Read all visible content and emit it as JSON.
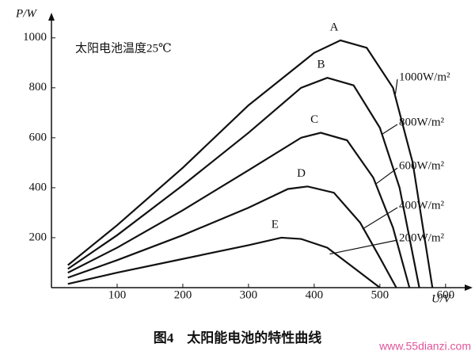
{
  "chart_data": {
    "type": "line",
    "x_label": "U/V",
    "y_label": "P/W",
    "note": "太阳电池温度25℃",
    "caption": "图4　太阳能电池的特性曲线",
    "watermark": "www.55dianzi.com",
    "xlim": [
      0,
      640
    ],
    "ylim": [
      0,
      1050
    ],
    "xticks": [
      100,
      200,
      300,
      400,
      500,
      600
    ],
    "yticks": [
      200,
      400,
      600,
      800,
      1000
    ],
    "color": "#111111",
    "series": [
      {
        "name": "A",
        "irradiance": "1000W/m²",
        "x": [
          25,
          100,
          200,
          300,
          400,
          440,
          480,
          520,
          550,
          580
        ],
        "values": [
          90,
          250,
          480,
          730,
          940,
          990,
          960,
          800,
          500,
          0
        ]
      },
      {
        "name": "B",
        "irradiance": "800W/m²",
        "x": [
          25,
          100,
          200,
          300,
          380,
          420,
          460,
          500,
          530,
          560
        ],
        "values": [
          75,
          210,
          410,
          620,
          800,
          840,
          810,
          640,
          400,
          0
        ]
      },
      {
        "name": "C",
        "irradiance": "600W/m²",
        "x": [
          25,
          100,
          200,
          300,
          380,
          410,
          450,
          490,
          520,
          545
        ],
        "values": [
          60,
          160,
          310,
          470,
          600,
          620,
          590,
          440,
          240,
          0
        ]
      },
      {
        "name": "D",
        "irradiance": "400W/m²",
        "x": [
          25,
          100,
          200,
          300,
          360,
          390,
          430,
          470,
          500,
          525
        ],
        "values": [
          40,
          110,
          210,
          320,
          395,
          405,
          380,
          260,
          120,
          0
        ]
      },
      {
        "name": "E",
        "irradiance": "200W/m²",
        "x": [
          25,
          100,
          200,
          300,
          350,
          380,
          420,
          460,
          500
        ],
        "values": [
          15,
          60,
          115,
          170,
          200,
          195,
          160,
          80,
          0
        ]
      }
    ]
  }
}
